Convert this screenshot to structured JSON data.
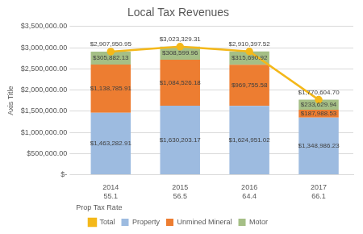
{
  "chart_data": {
    "type": "bar",
    "title": "Local Tax Revenues",
    "ylabel": "Axis Title",
    "categories": [
      "2014",
      "2015",
      "2016",
      "2017"
    ],
    "prop_tax_rate": {
      "label": "Prop Tax Rate",
      "values": [
        55.1,
        56.5,
        64.4,
        66.1
      ]
    },
    "stacked": true,
    "grid": true,
    "legend": "bottom",
    "data_labels": true,
    "ylim": [
      0,
      3500000
    ],
    "yticks": [
      {
        "value": 0,
        "label": "$-"
      },
      {
        "value": 500000,
        "label": "$500,000.00"
      },
      {
        "value": 1000000,
        "label": "$1,000,000.00"
      },
      {
        "value": 1500000,
        "label": "$1,500,000.00"
      },
      {
        "value": 2000000,
        "label": "$2,000,000.00"
      },
      {
        "value": 2500000,
        "label": "$2,500,000.00"
      },
      {
        "value": 3000000,
        "label": "$3,000,000.00"
      },
      {
        "value": 3500000,
        "label": "$3,500,000.00"
      }
    ],
    "series": [
      {
        "name": "Property",
        "type": "bar",
        "color": "#9dbbe0",
        "values": [
          1463282.91,
          1630203.17,
          1624951.02,
          1348986.23
        ],
        "value_labels": [
          "$1,463,282.91",
          "$1,630,203.17",
          "$1,624,951.02",
          "$1,348,986.23"
        ]
      },
      {
        "name": "Unmined Mineral",
        "type": "bar",
        "color": "#ed7d31",
        "values": [
          1138785.91,
          1084526.18,
          969755.58,
          187988.53
        ],
        "value_labels": [
          "$1,138,785.91",
          "$1,084,526.18",
          "$969,755.58",
          "$187,988.53"
        ]
      },
      {
        "name": "Motor",
        "type": "bar",
        "color": "#a5bf86",
        "values": [
          305882.13,
          308599.96,
          315690.92,
          233629.94
        ],
        "value_labels": [
          "$305,882.13",
          "$308,599.96",
          "$315,690.92",
          "$233,629.94"
        ]
      },
      {
        "name": "Total",
        "type": "line",
        "color": "#f4b81a",
        "marker": "circle",
        "values": [
          2907950.95,
          3023329.31,
          2910397.52,
          1770604.7
        ],
        "value_labels": [
          "$2,907,950.95",
          "$3,023,329.31",
          "$2,910,397.52",
          "$1,770,604.70"
        ]
      }
    ]
  }
}
